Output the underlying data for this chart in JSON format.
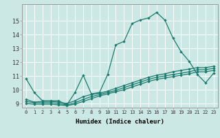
{
  "xlabel": "Humidex (Indice chaleur)",
  "xlim": [
    -0.5,
    23.5
  ],
  "ylim": [
    8.7,
    16.2
  ],
  "yticks": [
    9,
    10,
    11,
    12,
    13,
    14,
    15
  ],
  "xticks": [
    0,
    1,
    2,
    3,
    4,
    5,
    6,
    7,
    8,
    9,
    10,
    11,
    12,
    13,
    14,
    15,
    16,
    17,
    18,
    19,
    20,
    21,
    22,
    23
  ],
  "bg_color": "#cce8e4",
  "line_color": "#1a7a6e",
  "grid_color": "#ffffff",
  "curves": [
    {
      "x": [
        0,
        1,
        2,
        3,
        4,
        5,
        6,
        7,
        8,
        9,
        10,
        11,
        12,
        13,
        14,
        15,
        16,
        17,
        18,
        19,
        20,
        21,
        22,
        23
      ],
      "y": [
        10.8,
        9.8,
        9.2,
        9.2,
        9.2,
        8.9,
        9.8,
        11.05,
        9.7,
        9.8,
        11.1,
        13.25,
        13.5,
        14.8,
        15.05,
        15.2,
        15.6,
        15.05,
        13.75,
        12.75,
        12.05,
        11.1,
        10.5,
        11.2
      ]
    },
    {
      "x": [
        0,
        1,
        2,
        3,
        4,
        5,
        6,
        7,
        8,
        9,
        10,
        11,
        12,
        13,
        14,
        15,
        16,
        17,
        18,
        19,
        20,
        21,
        22,
        23
      ],
      "y": [
        9.3,
        9.1,
        9.15,
        9.15,
        9.1,
        9.0,
        9.2,
        9.5,
        9.65,
        9.75,
        9.9,
        10.1,
        10.3,
        10.5,
        10.7,
        10.9,
        11.05,
        11.15,
        11.3,
        11.4,
        11.5,
        11.6,
        11.6,
        11.7
      ]
    },
    {
      "x": [
        0,
        1,
        2,
        3,
        4,
        5,
        6,
        7,
        8,
        9,
        10,
        11,
        12,
        13,
        14,
        15,
        16,
        17,
        18,
        19,
        20,
        21,
        22,
        23
      ],
      "y": [
        9.15,
        9.05,
        9.05,
        9.05,
        9.0,
        8.9,
        9.05,
        9.3,
        9.5,
        9.65,
        9.8,
        9.95,
        10.15,
        10.35,
        10.55,
        10.75,
        10.9,
        11.0,
        11.1,
        11.2,
        11.3,
        11.45,
        11.45,
        11.55
      ]
    },
    {
      "x": [
        0,
        1,
        2,
        3,
        4,
        5,
        6,
        7,
        8,
        9,
        10,
        11,
        12,
        13,
        14,
        15,
        16,
        17,
        18,
        19,
        20,
        21,
        22,
        23
      ],
      "y": [
        9.0,
        8.95,
        8.95,
        8.95,
        8.9,
        8.85,
        8.95,
        9.15,
        9.35,
        9.55,
        9.7,
        9.85,
        10.0,
        10.2,
        10.4,
        10.6,
        10.75,
        10.85,
        10.95,
        11.05,
        11.15,
        11.3,
        11.3,
        11.4
      ]
    }
  ]
}
